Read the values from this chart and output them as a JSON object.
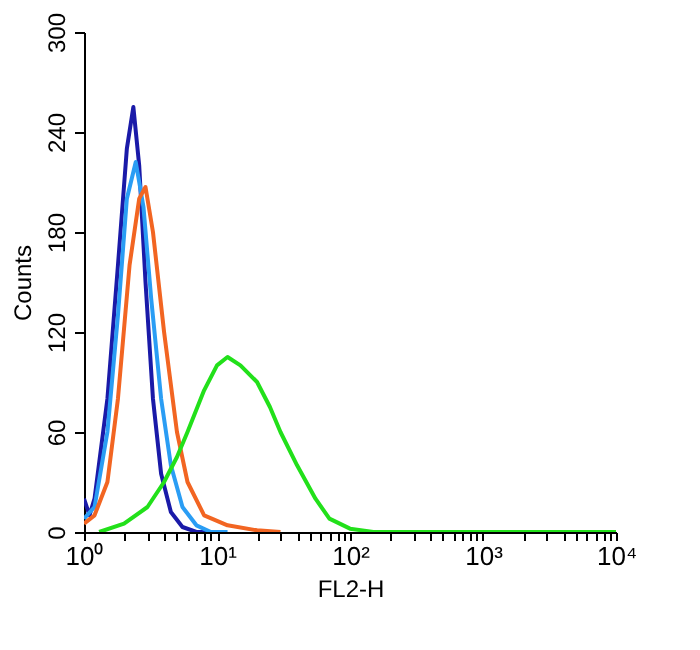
{
  "chart_data": {
    "type": "line",
    "xlabel": "FL2-H",
    "ylabel": "Counts",
    "log": "x",
    "grid": false,
    "marker": "none",
    "line_style": "solid",
    "xlim": [
      1,
      10000
    ],
    "ylim": [
      0,
      300
    ],
    "yticks": [
      0,
      60,
      120,
      180,
      240,
      300
    ],
    "xticks": [
      {
        "value": 1,
        "label": "10⁰"
      },
      {
        "value": 2,
        "label": null
      },
      {
        "value": 3,
        "label": null
      },
      {
        "value": 4,
        "label": null
      },
      {
        "value": 5,
        "label": null
      },
      {
        "value": 6,
        "label": null
      },
      {
        "value": 7,
        "label": null
      },
      {
        "value": 8,
        "label": null
      },
      {
        "value": 9,
        "label": null
      },
      {
        "value": 10,
        "label": "10¹"
      },
      {
        "value": 20,
        "label": null
      },
      {
        "value": 30,
        "label": null
      },
      {
        "value": 40,
        "label": null
      },
      {
        "value": 50,
        "label": null
      },
      {
        "value": 60,
        "label": null
      },
      {
        "value": 70,
        "label": null
      },
      {
        "value": 80,
        "label": null
      },
      {
        "value": 90,
        "label": null
      },
      {
        "value": 100,
        "label": "10²"
      },
      {
        "value": 200,
        "label": null
      },
      {
        "value": 300,
        "label": null
      },
      {
        "value": 400,
        "label": null
      },
      {
        "value": 500,
        "label": null
      },
      {
        "value": 600,
        "label": null
      },
      {
        "value": 700,
        "label": null
      },
      {
        "value": 800,
        "label": null
      },
      {
        "value": 900,
        "label": null
      },
      {
        "value": 1000,
        "label": "10³"
      },
      {
        "value": 2000,
        "label": null
      },
      {
        "value": 3000,
        "label": null
      },
      {
        "value": 4000,
        "label": null
      },
      {
        "value": 5000,
        "label": null
      },
      {
        "value": 6000,
        "label": null
      },
      {
        "value": 7000,
        "label": null
      },
      {
        "value": 8000,
        "label": null
      },
      {
        "value": 9000,
        "label": null
      },
      {
        "value": 10000,
        "label": "10⁴"
      }
    ],
    "series": [
      {
        "color": "#1a1aa8",
        "x": [
          1,
          1.1,
          1.2,
          1.5,
          1.8,
          2.1,
          2.35,
          2.6,
          2.9,
          3.3,
          3.8,
          4.5,
          5.5,
          7,
          10
        ],
        "values": [
          20,
          10,
          20,
          80,
          160,
          230,
          255,
          220,
          150,
          80,
          35,
          12,
          3,
          0,
          0
        ]
      },
      {
        "color": "#2a9df4",
        "x": [
          1,
          1.2,
          1.5,
          1.8,
          2.1,
          2.45,
          2.8,
          3.2,
          3.8,
          4.5,
          5.5,
          7,
          9,
          12
        ],
        "values": [
          8,
          15,
          60,
          130,
          200,
          222,
          195,
          140,
          80,
          40,
          15,
          4,
          0,
          0
        ]
      },
      {
        "color": "#f26522",
        "x": [
          1,
          1.2,
          1.5,
          1.8,
          2.2,
          2.6,
          2.9,
          3.3,
          4,
          5,
          6,
          8,
          12,
          20,
          30
        ],
        "values": [
          5,
          10,
          30,
          80,
          160,
          200,
          207,
          180,
          120,
          60,
          30,
          10,
          4,
          1,
          0
        ]
      },
      {
        "color": "#22e01a",
        "x": [
          1.3,
          2,
          3,
          4,
          5,
          6,
          8,
          10,
          12,
          15,
          20,
          25,
          30,
          40,
          55,
          70,
          100,
          150,
          10000
        ],
        "values": [
          0,
          5,
          15,
          30,
          45,
          60,
          85,
          100,
          105,
          100,
          90,
          75,
          60,
          40,
          20,
          8,
          2,
          0,
          0
        ]
      }
    ]
  }
}
